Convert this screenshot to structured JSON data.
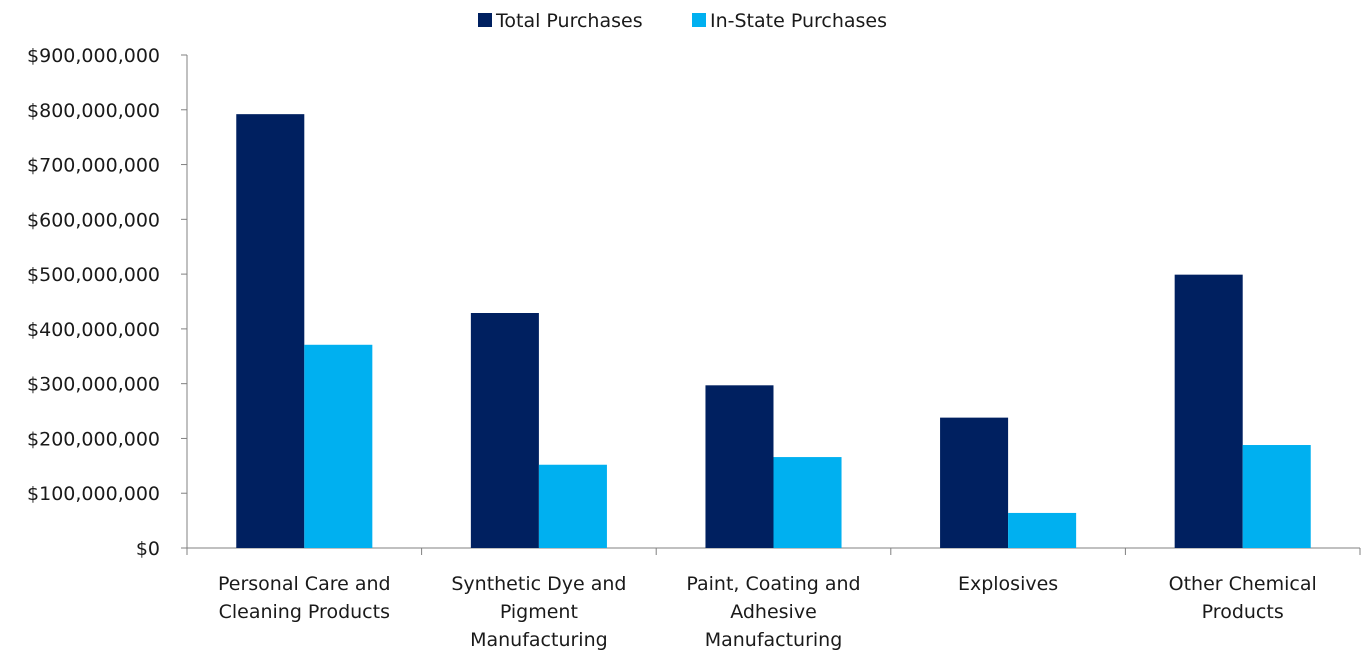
{
  "chart_data": {
    "type": "bar",
    "categories": [
      [
        "Personal Care and",
        "Cleaning Products"
      ],
      [
        "Synthetic Dye and",
        "Pigment",
        "Manufacturing"
      ],
      [
        "Paint, Coating and",
        "Adhesive",
        "Manufacturing"
      ],
      [
        "Explosives"
      ],
      [
        "Other Chemical",
        "Products"
      ]
    ],
    "series": [
      {
        "name": "Total Purchases",
        "color": "#002060",
        "values": [
          792000000,
          429000000,
          297000000,
          238000000,
          499000000
        ]
      },
      {
        "name": "In-State Purchases",
        "color": "#00B0F0",
        "values": [
          371000000,
          152000000,
          166000000,
          64000000,
          188000000
        ]
      }
    ],
    "ylim": [
      0,
      900000000
    ],
    "yticks": [
      "$0",
      "$100,000,000",
      "$200,000,000",
      "$300,000,000",
      "$400,000,000",
      "$500,000,000",
      "$600,000,000",
      "$700,000,000",
      "$800,000,000",
      "$900,000,000"
    ],
    "legend_position": "top-center",
    "grid": false
  }
}
